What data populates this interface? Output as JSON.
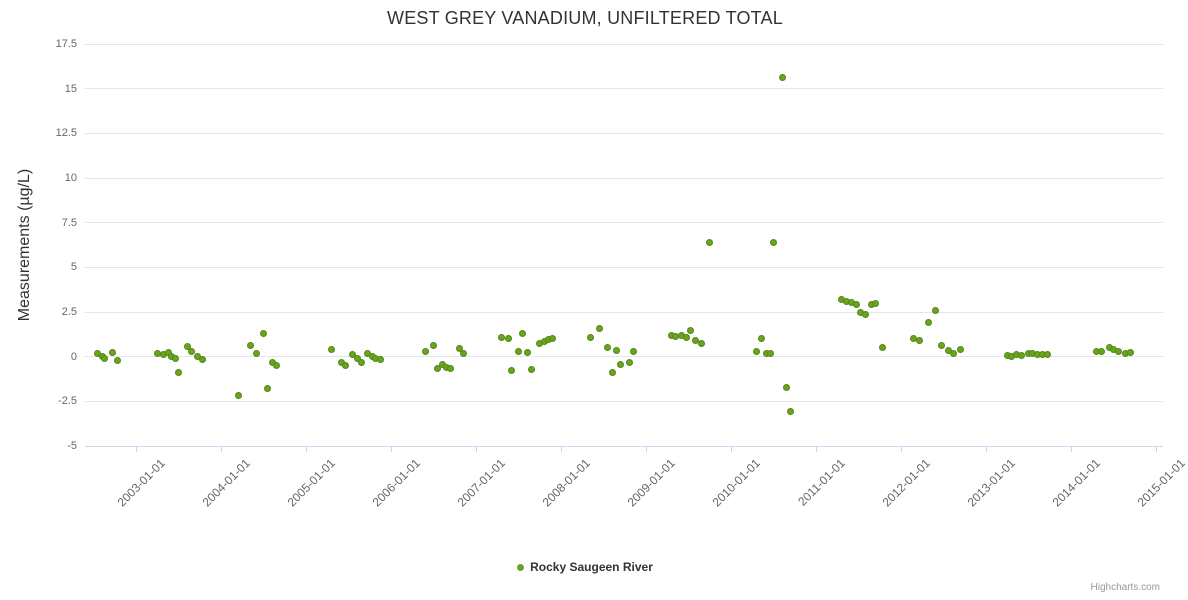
{
  "chart_data": {
    "type": "scatter",
    "title": "WEST GREY VANADIUM, UNFILTERED TOTAL",
    "xlabel": "",
    "ylabel": "Measurements (µg/L)",
    "ylim": [
      -5,
      17.5
    ],
    "y_ticks": [
      17.5,
      15,
      12.5,
      10,
      7.5,
      5,
      2.5,
      0,
      -2.5,
      -5
    ],
    "grid": true,
    "legend_position": "bottom",
    "x_axis": {
      "tick_labels": [
        "2003-01-01",
        "2004-01-01",
        "2005-01-01",
        "2006-01-01",
        "2007-01-01",
        "2008-01-01",
        "2009-01-01",
        "2010-01-01",
        "2011-01-01",
        "2012-01-01",
        "2013-01-01",
        "2014-01-01",
        "2015-01-01"
      ],
      "tick_years": [
        2003,
        2004,
        2005,
        2006,
        2007,
        2008,
        2009,
        2010,
        2011,
        2012,
        2013,
        2014,
        2015
      ],
      "min_year": 2002.4,
      "max_year": 2015.08
    },
    "series": [
      {
        "name": "Rocky Saugeen River",
        "color": "#68A51E",
        "points": [
          [
            2002.55,
            0.2
          ],
          [
            2002.6,
            0.0
          ],
          [
            2002.63,
            -0.1
          ],
          [
            2002.72,
            0.25
          ],
          [
            2002.78,
            -0.2
          ],
          [
            2003.25,
            0.2
          ],
          [
            2003.32,
            0.1
          ],
          [
            2003.38,
            0.25
          ],
          [
            2003.42,
            0.0
          ],
          [
            2003.46,
            -0.1
          ],
          [
            2003.5,
            -0.9
          ],
          [
            2003.6,
            0.55
          ],
          [
            2003.65,
            0.3
          ],
          [
            2003.72,
            0.0
          ],
          [
            2003.78,
            -0.15
          ],
          [
            2004.2,
            -2.2
          ],
          [
            2004.35,
            0.6
          ],
          [
            2004.42,
            0.15
          ],
          [
            2004.5,
            1.3
          ],
          [
            2004.55,
            -1.8
          ],
          [
            2004.6,
            -0.35
          ],
          [
            2004.65,
            -0.5
          ],
          [
            2005.3,
            0.4
          ],
          [
            2005.42,
            -0.35
          ],
          [
            2005.47,
            -0.5
          ],
          [
            2005.55,
            0.1
          ],
          [
            2005.6,
            -0.1
          ],
          [
            2005.65,
            -0.35
          ],
          [
            2005.72,
            0.2
          ],
          [
            2005.78,
            0.0
          ],
          [
            2005.82,
            -0.1
          ],
          [
            2005.88,
            -0.15
          ],
          [
            2006.4,
            0.3
          ],
          [
            2006.5,
            0.6
          ],
          [
            2006.55,
            -0.65
          ],
          [
            2006.6,
            -0.45
          ],
          [
            2006.65,
            -0.6
          ],
          [
            2006.7,
            -0.65
          ],
          [
            2006.8,
            0.45
          ],
          [
            2006.85,
            0.15
          ],
          [
            2007.3,
            1.1
          ],
          [
            2007.38,
            1.0
          ],
          [
            2007.42,
            -0.8
          ],
          [
            2007.5,
            0.3
          ],
          [
            2007.55,
            1.3
          ],
          [
            2007.6,
            0.25
          ],
          [
            2007.65,
            -0.7
          ],
          [
            2007.75,
            0.75
          ],
          [
            2007.8,
            0.85
          ],
          [
            2007.85,
            0.95
          ],
          [
            2007.9,
            1.0
          ],
          [
            2008.35,
            1.1
          ],
          [
            2008.45,
            1.6
          ],
          [
            2008.55,
            0.5
          ],
          [
            2008.6,
            -0.9
          ],
          [
            2008.65,
            0.35
          ],
          [
            2008.7,
            -0.45
          ],
          [
            2008.8,
            -0.3
          ],
          [
            2008.85,
            0.3
          ],
          [
            2009.3,
            1.2
          ],
          [
            2009.35,
            1.15
          ],
          [
            2009.42,
            1.2
          ],
          [
            2009.48,
            1.1
          ],
          [
            2009.52,
            1.45
          ],
          [
            2009.58,
            0.9
          ],
          [
            2009.65,
            0.75
          ],
          [
            2009.75,
            6.4
          ],
          [
            2010.3,
            0.3
          ],
          [
            2010.36,
            1.0
          ],
          [
            2010.42,
            0.2
          ],
          [
            2010.46,
            0.15
          ],
          [
            2010.5,
            6.4
          ],
          [
            2010.6,
            15.6
          ],
          [
            2010.65,
            -1.7
          ],
          [
            2010.7,
            -3.05
          ],
          [
            2011.3,
            3.2
          ],
          [
            2011.36,
            3.1
          ],
          [
            2011.42,
            3.05
          ],
          [
            2011.48,
            2.9
          ],
          [
            2011.52,
            2.45
          ],
          [
            2011.58,
            2.35
          ],
          [
            2011.65,
            2.9
          ],
          [
            2011.7,
            3.0
          ],
          [
            2011.78,
            0.5
          ],
          [
            2012.15,
            1.0
          ],
          [
            2012.22,
            0.9
          ],
          [
            2012.32,
            1.9
          ],
          [
            2012.4,
            2.6
          ],
          [
            2012.48,
            0.6
          ],
          [
            2012.56,
            0.35
          ],
          [
            2012.62,
            0.15
          ],
          [
            2012.7,
            0.4
          ],
          [
            2013.25,
            0.05
          ],
          [
            2013.3,
            0.0
          ],
          [
            2013.36,
            0.1
          ],
          [
            2013.42,
            0.05
          ],
          [
            2013.5,
            0.2
          ],
          [
            2013.55,
            0.15
          ],
          [
            2013.6,
            0.1
          ],
          [
            2013.66,
            0.1
          ],
          [
            2013.72,
            0.1
          ],
          [
            2014.3,
            0.3
          ],
          [
            2014.36,
            0.3
          ],
          [
            2014.45,
            0.5
          ],
          [
            2014.5,
            0.4
          ],
          [
            2014.56,
            0.3
          ],
          [
            2014.64,
            0.2
          ],
          [
            2014.7,
            0.25
          ]
        ]
      }
    ]
  },
  "legend": {
    "items": [
      {
        "label": "Rocky Saugeen River",
        "color": "#68A51E"
      }
    ]
  },
  "credits": {
    "label": "Highcharts.com"
  }
}
